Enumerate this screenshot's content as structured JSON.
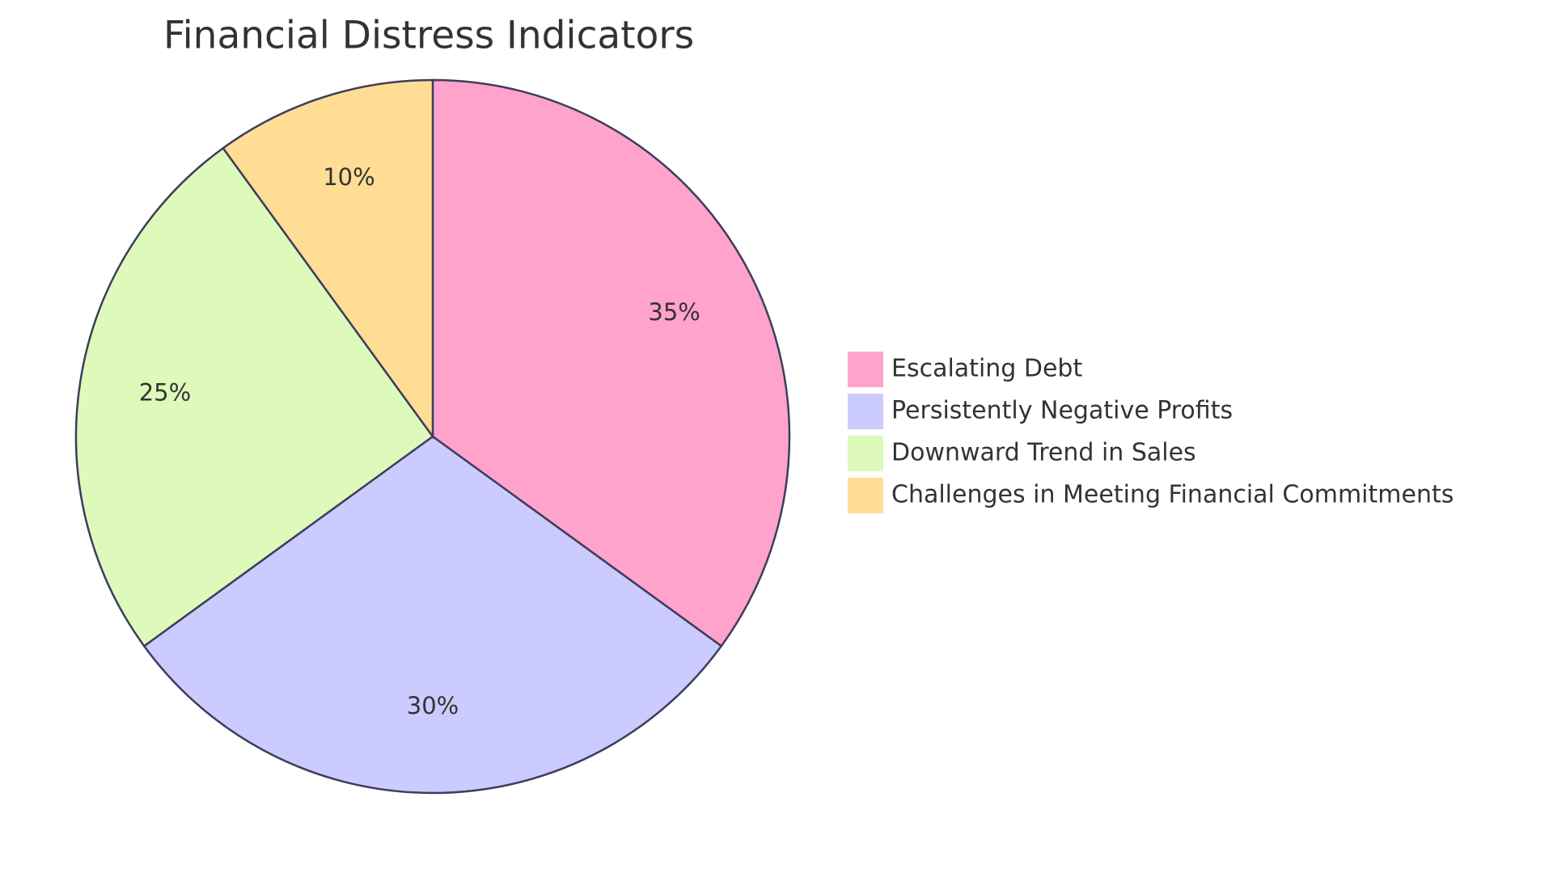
{
  "chart_data": {
    "type": "pie",
    "title": "Financial Distress Indicators",
    "categories": [
      "Escalating Debt",
      "Persistently Negative Profits",
      "Downward Trend in Sales",
      "Challenges in Meeting Financial Commitments"
    ],
    "values": [
      35,
      30,
      25,
      10
    ],
    "value_labels": [
      "35%",
      "30%",
      "25%",
      "10%"
    ],
    "colors": [
      "#ffa3cd",
      "#cbcbff",
      "#ddfabb",
      "#ffdd95"
    ],
    "legend": "right"
  }
}
